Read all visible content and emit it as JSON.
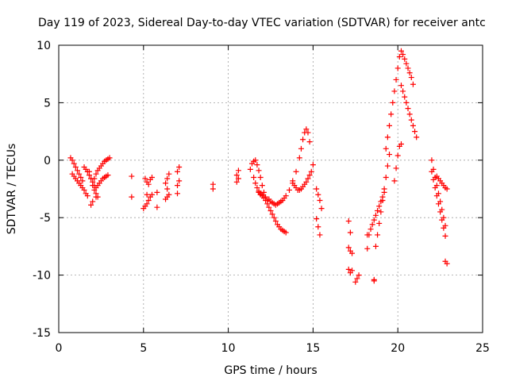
{
  "chart_data": {
    "type": "scatter",
    "title": "Day 119 of 2023, Sidereal Day-to-day VTEC variation (SDTVAR) for receiver antc",
    "xlabel": "GPS time / hours",
    "ylabel": "SDTVAR / TECUs",
    "xlim": [
      0,
      25
    ],
    "ylim": [
      -15,
      10
    ],
    "xticks": [
      0,
      5,
      10,
      15,
      20,
      25
    ],
    "yticks": [
      -15,
      -10,
      -5,
      0,
      5,
      10
    ],
    "grid": true,
    "marker": "+",
    "color": "#ff0000",
    "series": [
      {
        "name": "SDTVAR",
        "x": [
          0.7,
          0.8,
          0.9,
          1.0,
          1.1,
          1.2,
          1.3,
          1.4,
          0.8,
          0.9,
          1.0,
          1.1,
          1.2,
          1.3,
          1.4,
          1.5,
          1.6,
          1.7,
          1.5,
          1.6,
          1.7,
          1.8,
          1.9,
          2.0,
          2.1,
          1.8,
          1.9,
          2.0,
          2.1,
          2.2,
          2.3,
          2.1,
          2.2,
          2.3,
          2.4,
          2.5,
          2.6,
          2.7,
          2.8,
          2.9,
          3.0,
          2.2,
          2.3,
          2.4,
          2.5,
          2.6,
          2.7,
          2.8,
          2.9,
          1.9,
          2.0,
          2.2,
          4.3,
          4.3,
          5.0,
          5.1,
          5.2,
          5.3,
          5.4,
          5.5,
          5.1,
          5.2,
          5.3,
          5.4,
          5.5,
          5.2,
          5.8,
          5.8,
          6.3,
          6.4,
          6.5,
          6.3,
          6.4,
          6.5,
          6.4,
          7.0,
          7.1,
          7.0,
          7.1,
          7.0,
          9.1,
          9.1,
          10.5,
          10.6,
          10.5,
          10.6,
          11.3,
          11.4,
          11.5,
          11.6,
          11.7,
          11.8,
          11.9,
          12.0,
          12.1,
          12.2,
          12.3,
          11.5,
          11.6,
          11.7,
          11.8,
          11.9,
          12.0,
          11.8,
          11.9,
          12.0,
          12.1,
          12.2,
          12.3,
          12.4,
          12.5,
          12.6,
          12.7,
          12.8,
          12.9,
          13.0,
          13.1,
          13.2,
          13.3,
          13.4,
          12.4,
          12.5,
          12.6,
          12.7,
          12.8,
          12.9,
          13.0,
          13.1,
          13.2,
          13.3,
          13.4,
          13.6,
          13.8,
          14.0,
          14.2,
          14.3,
          14.4,
          14.5,
          14.6,
          14.7,
          14.8,
          13.8,
          13.9,
          14.0,
          14.1,
          14.2,
          14.3,
          14.4,
          14.5,
          14.6,
          14.7,
          14.8,
          14.9,
          15.0,
          15.2,
          15.3,
          15.4,
          15.2,
          15.3,
          15.4,
          15.5,
          17.1,
          17.2,
          17.1,
          17.2,
          17.3,
          17.1,
          17.2,
          17.3,
          17.5,
          17.6,
          17.7,
          18.3,
          18.4,
          18.5,
          18.6,
          18.7,
          18.8,
          18.9,
          19.0,
          19.1,
          19.2,
          18.7,
          18.8,
          18.9,
          19.0,
          19.1,
          19.2,
          19.3,
          19.4,
          19.5,
          18.6,
          18.2,
          18.2,
          18.6,
          19.3,
          19.4,
          19.5,
          19.6,
          19.7,
          19.8,
          19.9,
          20.0,
          20.1,
          20.2,
          20.3,
          20.4,
          20.5,
          20.6,
          20.7,
          20.8,
          20.9,
          20.2,
          20.3,
          20.4,
          20.5,
          20.6,
          20.7,
          20.8,
          20.9,
          21.0,
          21.1,
          19.8,
          19.9,
          20.0,
          20.1,
          20.2,
          22.0,
          22.1,
          22.2,
          22.3,
          22.4,
          22.5,
          22.6,
          22.7,
          22.8,
          22.0,
          22.1,
          22.2,
          22.3,
          22.4,
          22.5,
          22.6,
          22.7,
          22.8,
          22.3,
          22.4,
          22.5,
          22.6,
          22.7,
          22.8,
          22.9,
          22.8,
          22.9
        ],
        "y": [
          0.2,
          0.0,
          -0.3,
          -0.6,
          -0.9,
          -1.2,
          -1.5,
          -1.8,
          -1.2,
          -1.4,
          -1.6,
          -1.8,
          -2.0,
          -2.2,
          -2.4,
          -2.6,
          -2.9,
          -3.1,
          -0.6,
          -0.8,
          -1.0,
          -1.3,
          -1.6,
          -1.9,
          -2.2,
          -1.0,
          -1.6,
          -2.2,
          -2.6,
          -2.9,
          -3.2,
          -1.6,
          -1.2,
          -0.9,
          -0.7,
          -0.5,
          -0.3,
          -0.1,
          0.0,
          0.1,
          0.2,
          -2.4,
          -2.2,
          -2.0,
          -1.8,
          -1.6,
          -1.5,
          -1.4,
          -1.3,
          -3.9,
          -3.6,
          -3.2,
          -1.4,
          -3.2,
          -4.2,
          -4.0,
          -3.8,
          -3.5,
          -3.2,
          -3.0,
          -1.6,
          -1.9,
          -2.1,
          -1.7,
          -1.5,
          -3.0,
          -4.1,
          -2.8,
          -3.4,
          -3.2,
          -3.0,
          -2.0,
          -1.6,
          -1.2,
          -2.5,
          -1.0,
          -0.6,
          -2.2,
          -1.8,
          -2.9,
          -2.1,
          -2.5,
          -1.3,
          -1.6,
          -1.9,
          -0.9,
          -0.8,
          -0.3,
          -0.1,
          0.0,
          -0.4,
          -0.9,
          -1.5,
          -2.2,
          -2.8,
          -3.2,
          -3.5,
          -1.5,
          -2.0,
          -2.4,
          -2.7,
          -2.9,
          -3.0,
          -2.8,
          -3.0,
          -3.1,
          -3.3,
          -3.5,
          -3.8,
          -4.1,
          -4.4,
          -4.7,
          -5.0,
          -5.3,
          -5.6,
          -5.8,
          -6.0,
          -6.1,
          -6.2,
          -6.3,
          -3.4,
          -3.6,
          -3.7,
          -3.8,
          -3.9,
          -3.8,
          -3.7,
          -3.6,
          -3.5,
          -3.3,
          -3.1,
          -2.6,
          -1.8,
          -1.0,
          0.2,
          1.0,
          1.8,
          2.4,
          2.7,
          2.4,
          1.6,
          -2.0,
          -2.2,
          -2.4,
          -2.6,
          -2.6,
          -2.5,
          -2.3,
          -2.1,
          -1.9,
          -1.6,
          -1.3,
          -1.0,
          -0.4,
          -5.1,
          -5.8,
          -6.5,
          -2.5,
          -3.0,
          -3.5,
          -4.2,
          -5.3,
          -6.3,
          -7.6,
          -7.9,
          -8.1,
          -9.5,
          -9.8,
          -9.6,
          -10.6,
          -10.3,
          -10.0,
          -6.5,
          -6.0,
          -5.6,
          -5.2,
          -4.8,
          -4.4,
          -4.0,
          -3.6,
          -3.2,
          -2.8,
          -7.5,
          -6.5,
          -5.5,
          -4.5,
          -3.5,
          -2.5,
          -1.5,
          -0.5,
          0.5,
          -10.4,
          -7.7,
          -6.5,
          -10.5,
          1.0,
          2.0,
          3.0,
          4.0,
          5.0,
          6.0,
          7.0,
          8.0,
          9.0,
          9.5,
          9.2,
          8.8,
          8.4,
          8.0,
          7.6,
          7.2,
          6.6,
          6.5,
          6.0,
          5.5,
          5.0,
          4.5,
          4.0,
          3.5,
          3.0,
          2.5,
          2.0,
          -1.8,
          -0.7,
          0.4,
          1.2,
          1.4,
          0.0,
          -0.8,
          -1.5,
          -2.2,
          -2.9,
          -3.6,
          -4.3,
          -5.0,
          -5.7,
          -1.0,
          -1.7,
          -2.4,
          -3.1,
          -3.8,
          -4.5,
          -5.2,
          -5.9,
          -6.6,
          -1.4,
          -1.6,
          -1.8,
          -2.0,
          -2.2,
          -2.4,
          -2.5,
          -8.8,
          -9.0
        ]
      }
    ]
  }
}
